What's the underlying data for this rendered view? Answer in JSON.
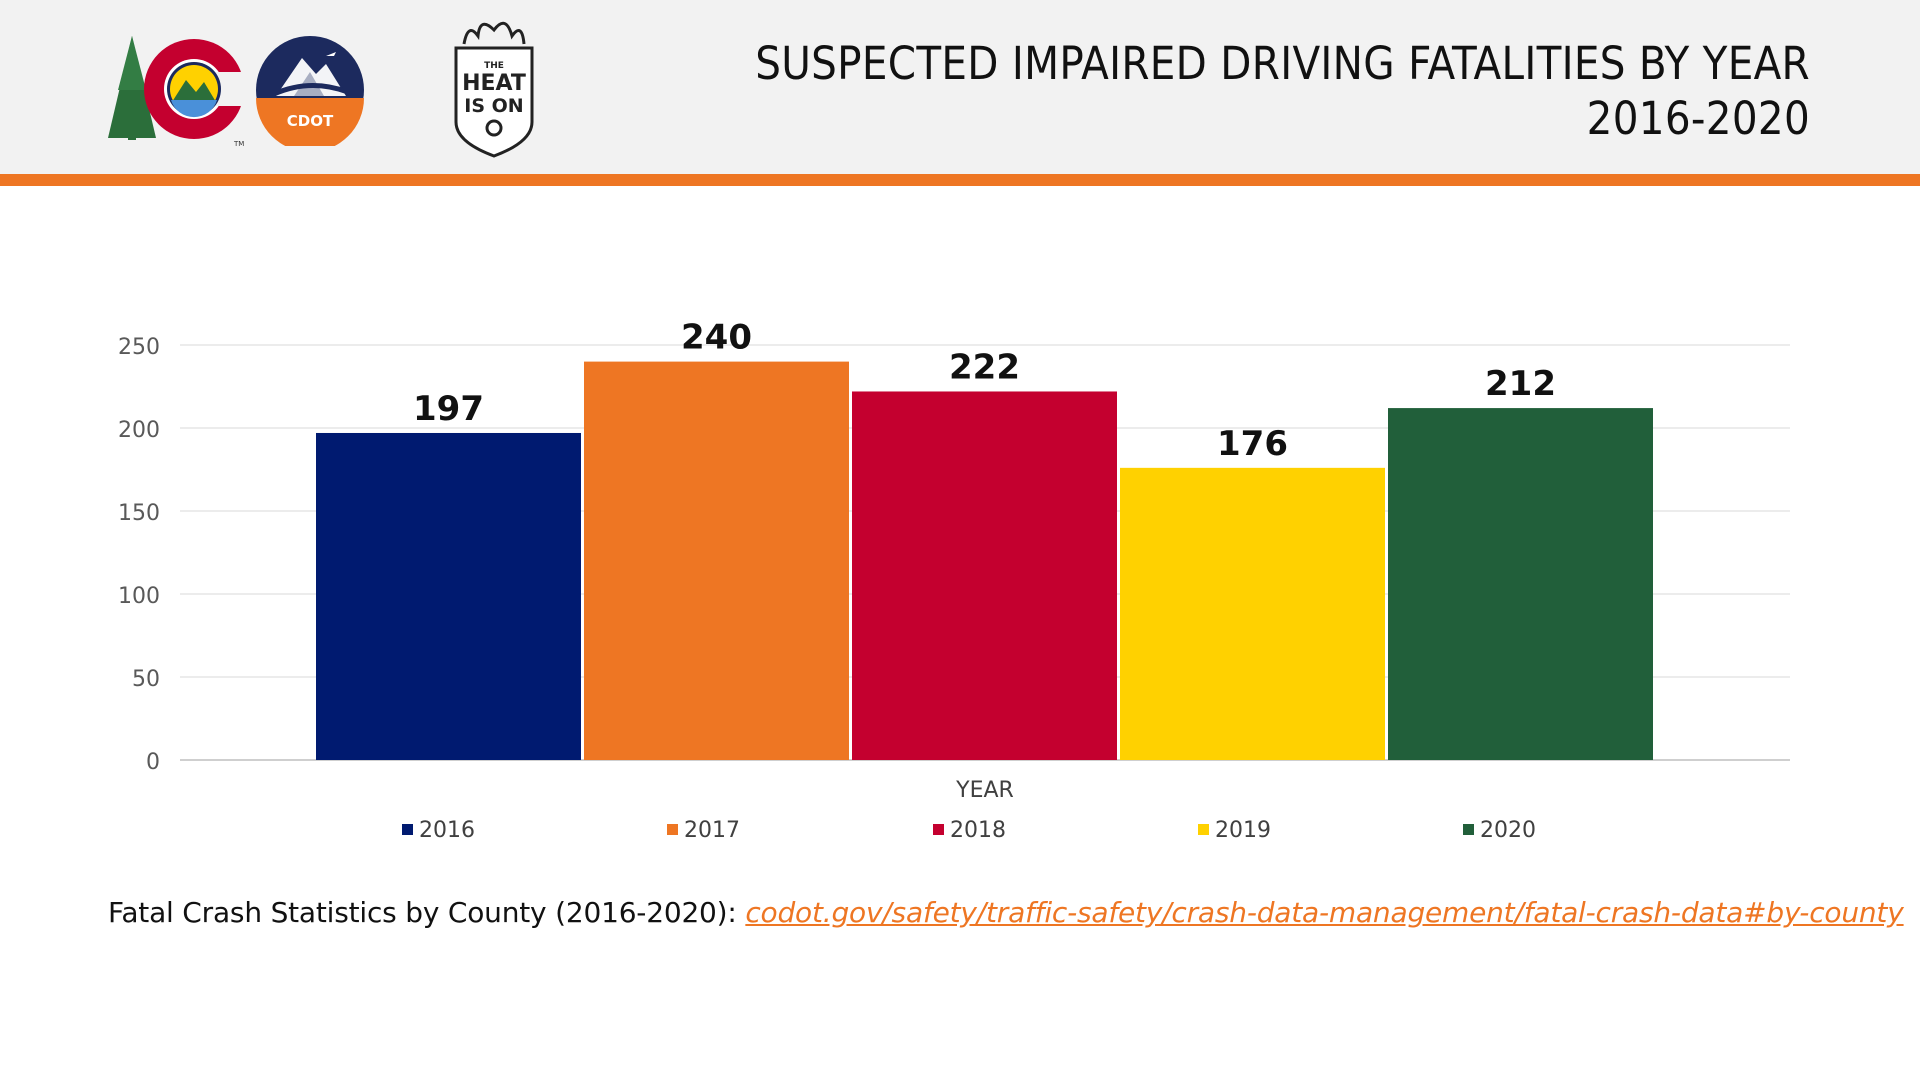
{
  "header": {
    "title_line1": "SUSPECTED IMPAIRED DRIVING FATALITIES BY YEAR",
    "title_line2": "2016-2020",
    "logos": {
      "cdot_text": "CDOT",
      "heat_line1": "THE",
      "heat_line2": "HEAT",
      "heat_line3": "IS ON",
      "tm": "TM"
    },
    "colors": {
      "band": "#f2f2f2",
      "rule": "#ee7623"
    }
  },
  "chart_data": {
    "type": "bar",
    "categories": [
      "2016",
      "2017",
      "2018",
      "2019",
      "2020"
    ],
    "values": [
      197,
      240,
      222,
      176,
      212
    ],
    "colors": [
      "#001a70",
      "#ee7623",
      "#c4002f",
      "#ffd100",
      "#215f3a"
    ],
    "xlabel": "YEAR",
    "ylabel": "",
    "ylim": [
      0,
      250
    ],
    "yticks": [
      0,
      50,
      100,
      150,
      200,
      250
    ],
    "grid": true,
    "legend": "bottom",
    "data_labels": true
  },
  "footnote": {
    "text": "Fatal Crash Statistics by County (2016-2020): ",
    "link": "codot.gov/safety/traffic-safety/crash-data-management/fatal-crash-data#by-county"
  }
}
